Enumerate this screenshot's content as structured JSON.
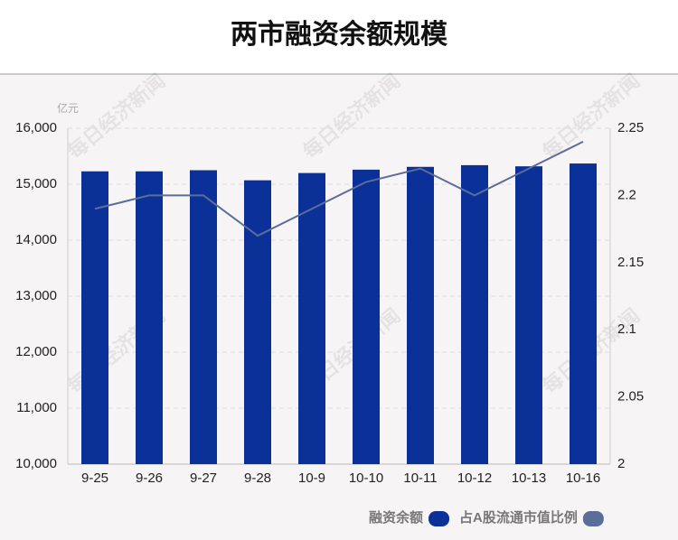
{
  "chart_data": {
    "type": "bar_line",
    "title": "两市融资余额规模",
    "y_unit": "亿元",
    "watermark": "每日经济新闻",
    "categories": [
      "9-25",
      "9-26",
      "9-27",
      "9-28",
      "10-9",
      "10-10",
      "10-11",
      "10-12",
      "10-13",
      "10-16"
    ],
    "series": [
      {
        "name": "融资余额",
        "type": "bar",
        "color": "#0b3199",
        "values": [
          15230,
          15230,
          15250,
          15070,
          15200,
          15260,
          15310,
          15340,
          15320,
          15370
        ]
      },
      {
        "name": "占A股流通市值比例",
        "type": "line",
        "axis": "y2",
        "color": "#5a6e99",
        "values": [
          2.19,
          2.2,
          2.2,
          2.17,
          2.19,
          2.21,
          2.22,
          2.2,
          2.22,
          2.24
        ]
      }
    ],
    "ylim": [
      10000,
      16000
    ],
    "yticks": [
      {
        "value": 10000,
        "label": "10,000"
      },
      {
        "value": 11000,
        "label": "11,000"
      },
      {
        "value": 12000,
        "label": "12,000"
      },
      {
        "value": 13000,
        "label": "13,000"
      },
      {
        "value": 14000,
        "label": "14,000"
      },
      {
        "value": 15000,
        "label": "15,000"
      },
      {
        "value": 16000,
        "label": "16,000"
      }
    ],
    "y2lim": [
      2,
      2.25
    ],
    "y2ticks": [
      2,
      2.05,
      2.1,
      2.15,
      2.2,
      2.25
    ],
    "grid": true,
    "legend": "bottom-right"
  }
}
